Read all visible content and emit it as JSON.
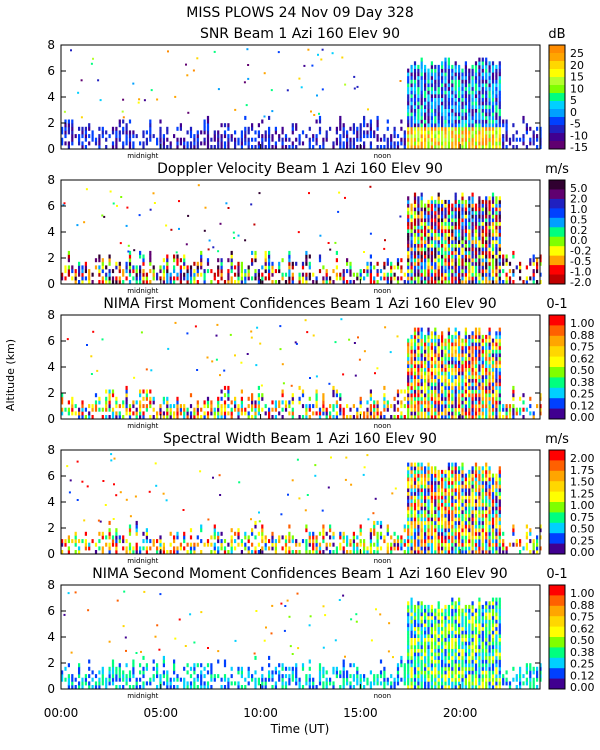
{
  "figure": {
    "title_line1": "MISS PLOWS  24 Nov 09 Day 328",
    "ylabel": "Altitude (km)",
    "xlabel": "Time (UT)",
    "midnight_label": "midnight",
    "noon_label": "noon"
  },
  "chart_data": [
    {
      "type": "heatmap",
      "title": "SNR Beam 1 Azi 160 Elev 90",
      "units": "dB",
      "x": {
        "label": "Time (UT)",
        "range_hours": [
          0,
          24
        ],
        "ticks": [
          "00:00",
          "05:00",
          "10:00",
          "15:00",
          "20:00"
        ]
      },
      "y": {
        "label": "Altitude (km)",
        "range_km": [
          0,
          8
        ],
        "ticks": [
          0,
          2,
          4,
          6,
          8
        ]
      },
      "colorbar": {
        "labels": [
          "25",
          "20",
          "15",
          "10",
          "5",
          "0",
          "-5",
          "-10",
          "-15"
        ],
        "colors": [
          "#ff8c00",
          "#ffa500",
          "#ffd700",
          "#ffff00",
          "#b5ff2b",
          "#7fff00",
          "#00ff7f",
          "#00d0ff",
          "#00a0ff",
          "#0040ff",
          "#2020c0",
          "#400090",
          "#600070"
        ]
      }
    },
    {
      "type": "heatmap",
      "title": "Doppler Velocity Beam 1 Azi 160 Elev 90",
      "units": "m/s",
      "x": {
        "label": "Time (UT)",
        "range_hours": [
          0,
          24
        ],
        "ticks": [
          "00:00",
          "05:00",
          "10:00",
          "15:00",
          "20:00"
        ]
      },
      "y": {
        "label": "Altitude (km)",
        "range_km": [
          0,
          8
        ],
        "ticks": [
          0,
          2,
          4,
          6,
          8
        ]
      },
      "colorbar": {
        "labels": [
          "5.0",
          "2.0",
          "1.0",
          "0.5",
          "0.2",
          "0.0",
          "-0.2",
          "-0.5",
          "-1.0",
          "-2.0"
        ],
        "colors": [
          "#300030",
          "#600070",
          "#2020c0",
          "#0040ff",
          "#00a0ff",
          "#00ff7f",
          "#7fff00",
          "#ffff00",
          "#ffa500",
          "#ff0000",
          "#c00000"
        ]
      }
    },
    {
      "type": "heatmap",
      "title": "NIMA First Moment Confidences Beam 1 Azi 160 Elev 90",
      "units": "0-1",
      "x": {
        "label": "Time (UT)",
        "range_hours": [
          0,
          24
        ],
        "ticks": [
          "00:00",
          "05:00",
          "10:00",
          "15:00",
          "20:00"
        ]
      },
      "y": {
        "label": "Altitude (km)",
        "range_km": [
          0,
          8
        ],
        "ticks": [
          0,
          2,
          4,
          6,
          8
        ]
      },
      "colorbar": {
        "labels": [
          "1.00",
          "0.88",
          "0.75",
          "0.62",
          "0.50",
          "0.38",
          "0.25",
          "0.12",
          "0.00"
        ],
        "colors": [
          "#ff0000",
          "#ff6000",
          "#ffa500",
          "#ffd700",
          "#ffff00",
          "#7fff00",
          "#00ff7f",
          "#00d0ff",
          "#0040ff",
          "#400090"
        ]
      }
    },
    {
      "type": "heatmap",
      "title": "Spectral Width Beam 1 Azi 160 Elev 90",
      "units": "m/s",
      "x": {
        "label": "Time (UT)",
        "range_hours": [
          0,
          24
        ],
        "ticks": [
          "00:00",
          "05:00",
          "10:00",
          "15:00",
          "20:00"
        ]
      },
      "y": {
        "label": "Altitude (km)",
        "range_km": [
          0,
          8
        ],
        "ticks": [
          0,
          2,
          4,
          6,
          8
        ]
      },
      "colorbar": {
        "labels": [
          "2.00",
          "1.75",
          "1.50",
          "1.25",
          "1.00",
          "0.75",
          "0.50",
          "0.25",
          "0.00"
        ],
        "colors": [
          "#ff0000",
          "#ff6000",
          "#ffa500",
          "#ffd700",
          "#ffff00",
          "#7fff00",
          "#00ff7f",
          "#00d0ff",
          "#0040ff",
          "#400090"
        ]
      }
    },
    {
      "type": "heatmap",
      "title": "NIMA Second Moment Confidences Beam 1 Azi 160 Elev 90",
      "units": "0-1",
      "x": {
        "label": "Time (UT)",
        "range_hours": [
          0,
          24
        ],
        "ticks": [
          "00:00",
          "05:00",
          "10:00",
          "15:00",
          "20:00"
        ]
      },
      "y": {
        "label": "Altitude (km)",
        "range_km": [
          0,
          8
        ],
        "ticks": [
          0,
          2,
          4,
          6,
          8
        ]
      },
      "colorbar": {
        "labels": [
          "1.00",
          "0.88",
          "0.75",
          "0.62",
          "0.50",
          "0.38",
          "0.25",
          "0.12",
          "0.00"
        ],
        "colors": [
          "#ff0000",
          "#ff6000",
          "#ffa500",
          "#ffd700",
          "#ffff00",
          "#7fff00",
          "#00ff7f",
          "#00d0ff",
          "#0040ff",
          "#400090"
        ]
      }
    }
  ]
}
